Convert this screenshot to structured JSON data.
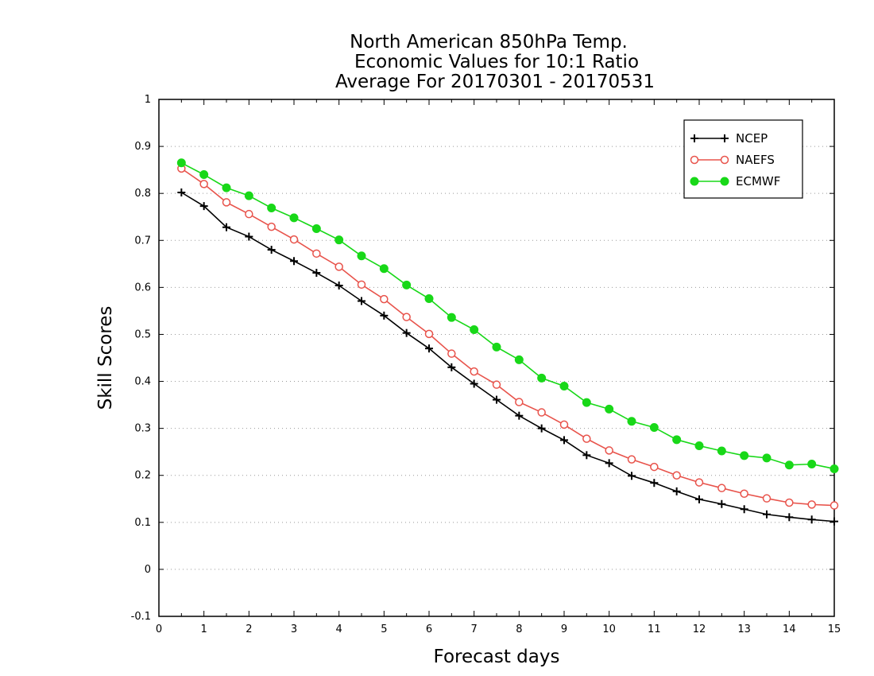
{
  "chart_data": {
    "type": "line",
    "title": [
      "North American 850hPa Temp.",
      "Economic Values for 10:1 Ratio",
      "Average For 20170301 - 20170531"
    ],
    "xlabel": "Forecast days",
    "ylabel": "Skill Scores",
    "xlim": [
      0,
      15
    ],
    "ylim": [
      -0.1,
      1
    ],
    "xticks": [
      "0",
      "1",
      "2",
      "3",
      "4",
      "5",
      "6",
      "7",
      "8",
      "9",
      "10",
      "11",
      "12",
      "13",
      "14",
      "15"
    ],
    "yticks": [
      "-0.1",
      "0",
      "0.1",
      "0.2",
      "0.3",
      "0.4",
      "0.5",
      "0.6",
      "0.7",
      "0.8",
      "0.9",
      "1"
    ],
    "grid": "horizontal dotted",
    "legend_position": "top-right",
    "x": [
      0.5,
      1,
      1.5,
      2,
      2.5,
      3,
      3.5,
      4,
      4.5,
      5,
      5.5,
      6,
      6.5,
      7,
      7.5,
      8,
      8.5,
      9,
      9.5,
      10,
      10.5,
      11,
      11.5,
      12,
      12.5,
      13,
      13.5,
      14,
      14.5,
      15
    ],
    "series": [
      {
        "name": "NCEP",
        "color": "#000000",
        "marker": "plus",
        "values": [
          0.802,
          0.773,
          0.728,
          0.708,
          0.68,
          0.656,
          0.631,
          0.604,
          0.571,
          0.54,
          0.503,
          0.47,
          0.43,
          0.395,
          0.361,
          0.327,
          0.3,
          0.275,
          0.243,
          0.226,
          0.199,
          0.184,
          0.166,
          0.149,
          0.139,
          0.128,
          0.117,
          0.111,
          0.106,
          0.102
        ]
      },
      {
        "name": "NAEFS",
        "color": "#e8534b",
        "marker": "open-circle",
        "values": [
          0.853,
          0.82,
          0.781,
          0.756,
          0.729,
          0.702,
          0.672,
          0.644,
          0.606,
          0.575,
          0.537,
          0.501,
          0.459,
          0.421,
          0.393,
          0.356,
          0.334,
          0.308,
          0.278,
          0.253,
          0.234,
          0.218,
          0.2,
          0.185,
          0.173,
          0.161,
          0.151,
          0.142,
          0.138,
          0.136
        ]
      },
      {
        "name": "ECMWF",
        "color": "#18d818",
        "marker": "filled-circle",
        "values": [
          0.865,
          0.84,
          0.812,
          0.795,
          0.769,
          0.748,
          0.725,
          0.701,
          0.667,
          0.64,
          0.605,
          0.576,
          0.536,
          0.51,
          0.473,
          0.446,
          0.407,
          0.39,
          0.355,
          0.341,
          0.315,
          0.302,
          0.276,
          0.263,
          0.252,
          0.242,
          0.237,
          0.222,
          0.224,
          0.214
        ]
      }
    ]
  }
}
